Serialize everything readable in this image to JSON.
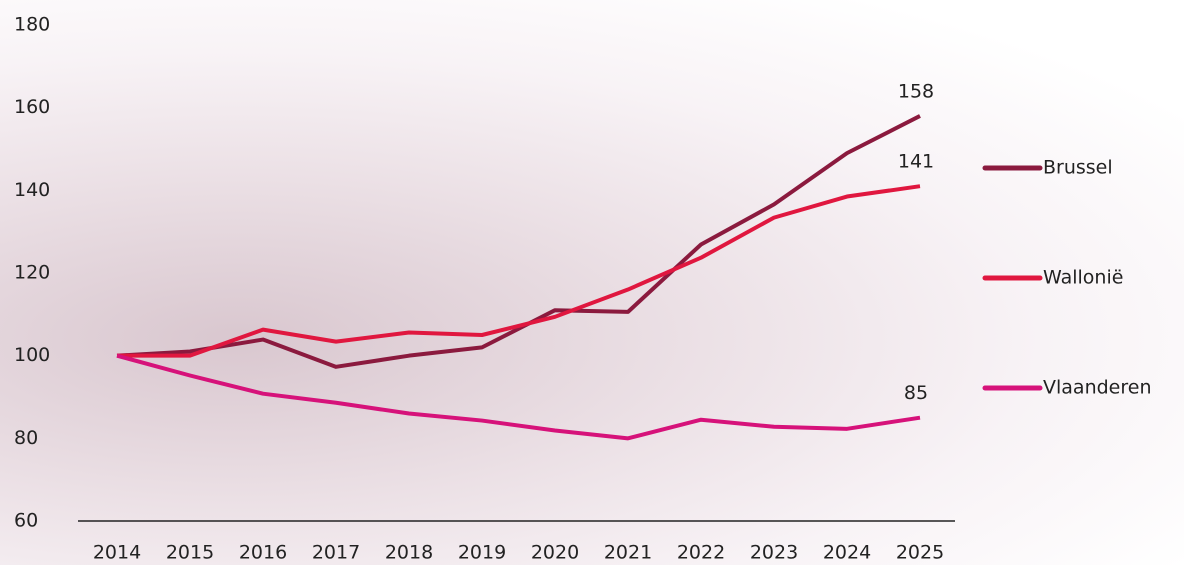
{
  "chart_data": {
    "type": "line",
    "x": [
      "2014",
      "2015",
      "2016",
      "2017",
      "2018",
      "2019",
      "2020",
      "2021",
      "2022",
      "2023",
      "2024",
      "2025"
    ],
    "series": [
      {
        "name": "Brussel",
        "color": "#8b1a3e",
        "values": [
          100,
          101,
          103.9,
          97.3,
          100,
          102,
          111,
          110.6,
          126.9,
          136.6,
          149,
          158
        ],
        "value_labels": [
          null,
          null,
          null,
          null,
          null,
          null,
          null,
          null,
          null,
          null,
          null,
          "158"
        ]
      },
      {
        "name": "Wallonië",
        "color": "#e0173f",
        "values": [
          100,
          100,
          106.3,
          103.4,
          105.6,
          105,
          109.4,
          116,
          123.7,
          133.4,
          138.5,
          141
        ],
        "value_labels": [
          null,
          null,
          null,
          null,
          null,
          null,
          null,
          null,
          null,
          null,
          null,
          "141"
        ]
      },
      {
        "name": "Vlaanderen",
        "color": "#d6127a",
        "values": [
          100,
          95.2,
          90.8,
          88.6,
          86,
          84.3,
          81.9,
          80,
          84.5,
          82.8,
          82.3,
          85
        ],
        "value_labels": [
          null,
          null,
          null,
          null,
          null,
          null,
          null,
          null,
          null,
          null,
          null,
          "85"
        ]
      }
    ],
    "ylim": [
      60,
      180
    ],
    "yticks": [
      60,
      80,
      100,
      120,
      140,
      160,
      180
    ],
    "grid": false,
    "legend": "right"
  }
}
